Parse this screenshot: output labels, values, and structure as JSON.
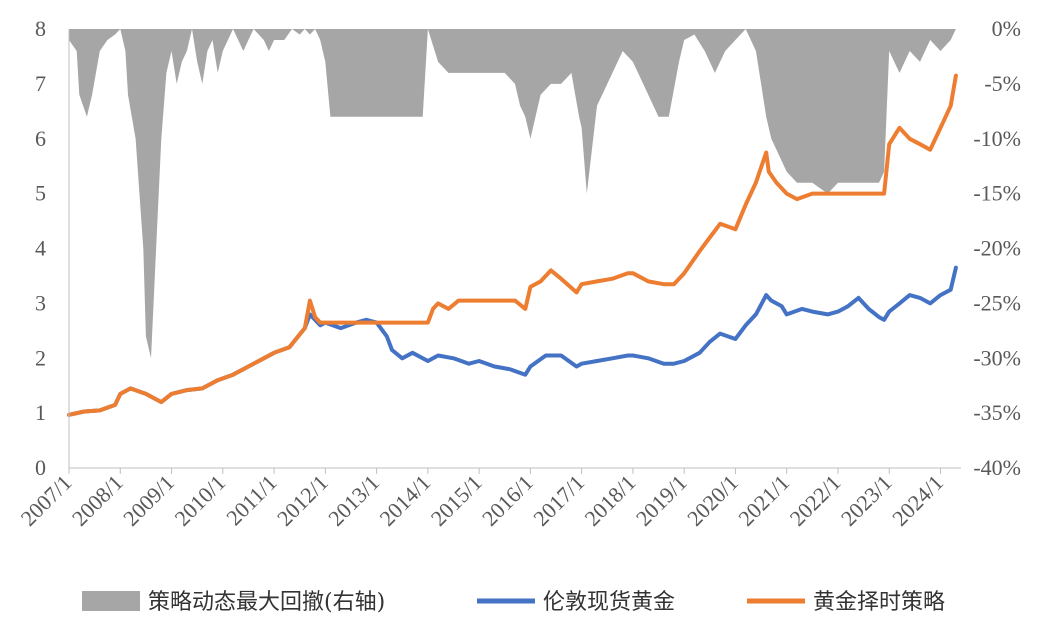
{
  "chart_data": {
    "type": "line",
    "x_labels": [
      "2007/1",
      "2008/1",
      "2009/1",
      "2010/1",
      "2011/1",
      "2012/1",
      "2013/1",
      "2014/1",
      "2015/1",
      "2016/1",
      "2017/1",
      "2018/1",
      "2019/1",
      "2020/1",
      "2021/1",
      "2022/1",
      "2023/1",
      "2024/1"
    ],
    "y_left": {
      "ticks": [
        "0",
        "1",
        "2",
        "3",
        "4",
        "5",
        "6",
        "7",
        "8"
      ],
      "ylim": [
        0,
        8
      ]
    },
    "y_right": {
      "ticks": [
        "0%",
        "-5%",
        "-10%",
        "-15%",
        "-20%",
        "-25%",
        "-30%",
        "-35%",
        "-40%"
      ],
      "ylim": [
        -0.4,
        0
      ]
    },
    "x_range": [
      2007.0,
      2024.4
    ],
    "grid": false,
    "legend_position": "bottom",
    "series": [
      {
        "name": "策略动态最大回撤(右轴)",
        "kind": "area",
        "axis": "right",
        "color": "#a6a6a6",
        "x": [
          2007.0,
          2007.15,
          2007.2,
          2007.35,
          2007.45,
          2007.6,
          2007.75,
          2007.9,
          2008.0,
          2008.1,
          2008.15,
          2008.3,
          2008.45,
          2008.5,
          2008.6,
          2008.7,
          2008.8,
          2008.9,
          2009.0,
          2009.1,
          2009.2,
          2009.3,
          2009.4,
          2009.5,
          2009.6,
          2009.7,
          2009.8,
          2009.9,
          2010.0,
          2010.1,
          2010.2,
          2010.3,
          2010.4,
          2010.5,
          2010.6,
          2010.7,
          2010.8,
          2010.9,
          2011.0,
          2011.1,
          2011.2,
          2011.35,
          2011.5,
          2011.6,
          2011.7,
          2011.8,
          2011.9,
          2012.0,
          2012.1,
          2013.0,
          2013.5,
          2013.9,
          2014.0,
          2014.2,
          2014.4,
          2014.5,
          2015.0,
          2015.5,
          2015.7,
          2015.8,
          2015.9,
          2016.0,
          2016.2,
          2016.4,
          2016.6,
          2016.8,
          2016.95,
          2017.0,
          2017.1,
          2017.3,
          2017.5,
          2017.8,
          2018.0,
          2018.2,
          2018.5,
          2018.7,
          2018.9,
          2019.0,
          2019.2,
          2019.4,
          2019.6,
          2019.8,
          2020.0,
          2020.2,
          2020.4,
          2020.5,
          2020.6,
          2020.7,
          2020.9,
          2021.0,
          2021.2,
          2021.5,
          2021.8,
          2022.0,
          2022.2,
          2022.5,
          2022.8,
          2022.9,
          2023.0,
          2023.2,
          2023.4,
          2023.6,
          2023.8,
          2024.0,
          2024.2,
          2024.3
        ],
        "values": [
          -0.01,
          -0.02,
          -0.06,
          -0.08,
          -0.06,
          -0.02,
          -0.01,
          -0.005,
          0,
          -0.02,
          -0.06,
          -0.1,
          -0.2,
          -0.28,
          -0.3,
          -0.2,
          -0.1,
          -0.04,
          -0.02,
          -0.05,
          -0.03,
          -0.02,
          0,
          -0.03,
          -0.05,
          -0.02,
          -0.01,
          -0.04,
          -0.02,
          -0.01,
          0,
          -0.01,
          -0.02,
          -0.01,
          0,
          -0.005,
          -0.01,
          -0.02,
          -0.01,
          -0.01,
          -0.01,
          0,
          -0.005,
          0,
          -0.005,
          0,
          -0.01,
          -0.03,
          -0.08,
          -0.08,
          -0.08,
          -0.08,
          0,
          -0.03,
          -0.04,
          -0.04,
          -0.04,
          -0.04,
          -0.05,
          -0.07,
          -0.08,
          -0.1,
          -0.06,
          -0.05,
          -0.05,
          -0.04,
          -0.08,
          -0.09,
          -0.15,
          -0.07,
          -0.05,
          -0.02,
          -0.03,
          -0.05,
          -0.08,
          -0.08,
          -0.03,
          -0.01,
          -0.005,
          -0.02,
          -0.04,
          -0.02,
          -0.01,
          0,
          -0.02,
          -0.05,
          -0.08,
          -0.1,
          -0.12,
          -0.13,
          -0.14,
          -0.14,
          -0.15,
          -0.14,
          -0.14,
          -0.14,
          -0.14,
          -0.13,
          -0.02,
          -0.04,
          -0.02,
          -0.03,
          -0.01,
          -0.02,
          -0.01,
          0
        ]
      },
      {
        "name": "伦敦现货黄金",
        "kind": "line",
        "axis": "left",
        "color": "#4472c4",
        "x": [
          2007.0,
          2007.3,
          2007.6,
          2007.9,
          2008.0,
          2008.2,
          2008.5,
          2008.8,
          2009.0,
          2009.3,
          2009.6,
          2009.9,
          2010.2,
          2010.5,
          2010.8,
          2011.0,
          2011.3,
          2011.6,
          2011.7,
          2011.9,
          2012.0,
          2012.3,
          2012.6,
          2012.8,
          2013.0,
          2013.2,
          2013.3,
          2013.5,
          2013.7,
          2014.0,
          2014.2,
          2014.5,
          2014.8,
          2015.0,
          2015.3,
          2015.6,
          2015.9,
          2016.0,
          2016.3,
          2016.6,
          2016.9,
          2017.0,
          2017.3,
          2017.6,
          2017.9,
          2018.0,
          2018.3,
          2018.6,
          2018.8,
          2019.0,
          2019.3,
          2019.5,
          2019.7,
          2020.0,
          2020.2,
          2020.4,
          2020.6,
          2020.7,
          2020.9,
          2021.0,
          2021.3,
          2021.5,
          2021.8,
          2022.0,
          2022.2,
          2022.4,
          2022.6,
          2022.8,
          2022.9,
          2023.0,
          2023.2,
          2023.4,
          2023.6,
          2023.8,
          2024.0,
          2024.2,
          2024.3
        ],
        "values": [
          0.97,
          1.03,
          1.05,
          1.15,
          1.35,
          1.45,
          1.35,
          1.2,
          1.35,
          1.42,
          1.45,
          1.6,
          1.7,
          1.85,
          2.0,
          2.1,
          2.2,
          2.55,
          2.8,
          2.6,
          2.65,
          2.55,
          2.65,
          2.7,
          2.65,
          2.4,
          2.15,
          2.0,
          2.1,
          1.95,
          2.05,
          2.0,
          1.9,
          1.95,
          1.85,
          1.8,
          1.7,
          1.85,
          2.05,
          2.05,
          1.85,
          1.9,
          1.95,
          2.0,
          2.05,
          2.05,
          2.0,
          1.9,
          1.9,
          1.95,
          2.1,
          2.3,
          2.45,
          2.35,
          2.6,
          2.8,
          3.15,
          3.05,
          2.95,
          2.8,
          2.9,
          2.85,
          2.8,
          2.85,
          2.95,
          3.1,
          2.9,
          2.75,
          2.7,
          2.85,
          3.0,
          3.15,
          3.1,
          3.0,
          3.15,
          3.25,
          3.65
        ]
      },
      {
        "name": "黄金择时策略",
        "kind": "line",
        "axis": "left",
        "color": "#ed7d31",
        "x": [
          2007.0,
          2007.3,
          2007.6,
          2007.9,
          2008.0,
          2008.2,
          2008.5,
          2008.8,
          2009.0,
          2009.3,
          2009.6,
          2009.9,
          2010.2,
          2010.5,
          2010.8,
          2011.0,
          2011.3,
          2011.6,
          2011.7,
          2011.8,
          2011.9,
          2012.0,
          2012.5,
          2013.0,
          2013.5,
          2014.0,
          2014.1,
          2014.2,
          2014.4,
          2014.6,
          2015.0,
          2015.5,
          2015.7,
          2015.9,
          2016.0,
          2016.2,
          2016.4,
          2016.6,
          2016.9,
          2017.0,
          2017.3,
          2017.6,
          2017.9,
          2018.0,
          2018.3,
          2018.6,
          2018.8,
          2019.0,
          2019.3,
          2019.5,
          2019.7,
          2020.0,
          2020.2,
          2020.4,
          2020.6,
          2020.65,
          2020.8,
          2021.0,
          2021.2,
          2021.5,
          2022.0,
          2022.5,
          2022.9,
          2023.0,
          2023.2,
          2023.4,
          2023.6,
          2023.8,
          2024.0,
          2024.2,
          2024.3
        ],
        "values": [
          0.97,
          1.03,
          1.05,
          1.15,
          1.35,
          1.45,
          1.35,
          1.2,
          1.35,
          1.42,
          1.45,
          1.6,
          1.7,
          1.85,
          2.0,
          2.1,
          2.2,
          2.55,
          3.05,
          2.75,
          2.65,
          2.65,
          2.65,
          2.65,
          2.65,
          2.65,
          2.9,
          3.0,
          2.9,
          3.05,
          3.05,
          3.05,
          3.05,
          2.9,
          3.3,
          3.4,
          3.6,
          3.45,
          3.2,
          3.35,
          3.4,
          3.45,
          3.55,
          3.55,
          3.4,
          3.35,
          3.35,
          3.55,
          3.95,
          4.2,
          4.45,
          4.35,
          4.8,
          5.2,
          5.75,
          5.4,
          5.2,
          5.0,
          4.9,
          5.0,
          5.0,
          5.0,
          5.0,
          5.9,
          6.2,
          6.0,
          5.9,
          5.8,
          6.2,
          6.6,
          7.15
        ]
      }
    ]
  }
}
